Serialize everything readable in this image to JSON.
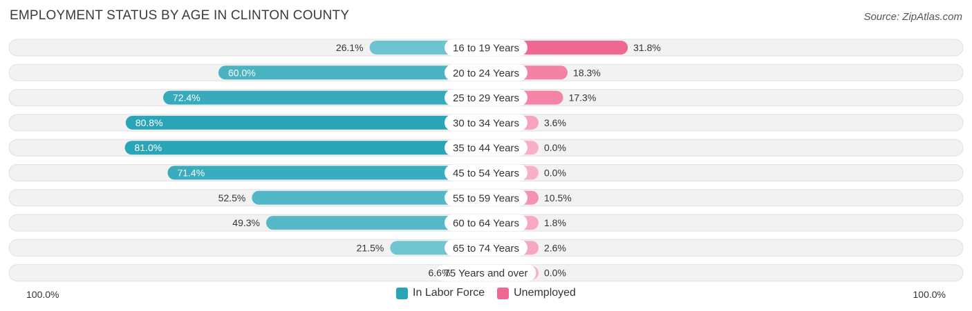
{
  "title": "EMPLOYMENT STATUS BY AGE IN CLINTON COUNTY",
  "source": "Source: ZipAtlas.com",
  "colors": {
    "labor_force": "#2aa5b8",
    "labor_force_light": "#7ac9d3",
    "unemployed": "#f06892",
    "unemployed_light": "#f7b0c6"
  },
  "axis": {
    "left_label": "100.0%",
    "right_label": "100.0%"
  },
  "legend": [
    {
      "label": "In Labor Force",
      "color": "#2aa5b8"
    },
    {
      "label": "Unemployed",
      "color": "#f06892"
    }
  ],
  "chart_data": {
    "type": "bar",
    "orientation": "horizontal-diverging",
    "categories": [
      "16 to 19 Years",
      "20 to 24 Years",
      "25 to 29 Years",
      "30 to 34 Years",
      "35 to 44 Years",
      "45 to 54 Years",
      "55 to 59 Years",
      "60 to 64 Years",
      "65 to 74 Years",
      "75 Years and over"
    ],
    "series": [
      {
        "name": "In Labor Force",
        "values": [
          26.1,
          60.0,
          72.4,
          80.8,
          81.0,
          71.4,
          52.5,
          49.3,
          21.5,
          6.6
        ],
        "labels": [
          "26.1%",
          "60.0%",
          "72.4%",
          "80.8%",
          "81.0%",
          "71.4%",
          "52.5%",
          "49.3%",
          "21.5%",
          "6.6%"
        ]
      },
      {
        "name": "Unemployed",
        "values": [
          31.8,
          18.3,
          17.3,
          3.6,
          0.0,
          0.0,
          10.5,
          1.8,
          2.6,
          0.0
        ],
        "labels": [
          "31.8%",
          "18.3%",
          "17.3%",
          "3.6%",
          "0.0%",
          "0.0%",
          "10.5%",
          "1.8%",
          "2.6%",
          "0.0%"
        ]
      }
    ],
    "xlim": [
      -100,
      100
    ],
    "legend_position": "bottom-center",
    "grid": false
  }
}
